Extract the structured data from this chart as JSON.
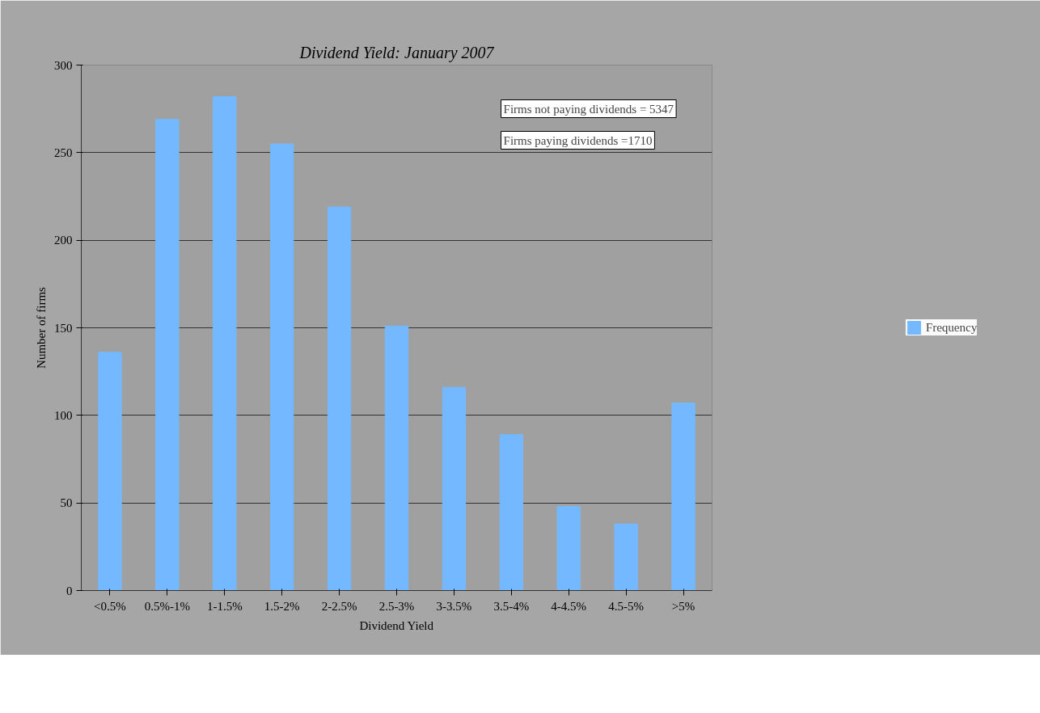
{
  "chart_data": {
    "type": "bar",
    "title": "Dividend Yield: January 2007",
    "xlabel": "Dividend Yield",
    "ylabel": "Number of firms",
    "categories": [
      "<0.5%",
      "0.5%-1%",
      "1-1.5%",
      "1.5-2%",
      "2-2.5%",
      "2.5-3%",
      "3-3.5%",
      "3.5-4%",
      "4-4.5%",
      "4.5-5%",
      ">5%"
    ],
    "series": [
      {
        "name": "Frequency",
        "color": "#74b9ff",
        "values": [
          136,
          269,
          282,
          255,
          219,
          151,
          116,
          89,
          48,
          38,
          107
        ]
      }
    ],
    "ylim": [
      0,
      300
    ],
    "yticks": [
      0,
      50,
      100,
      150,
      200,
      250,
      300
    ],
    "grid": "y",
    "legend": "right",
    "annotations": [
      "Firms not paying dividends = 5347",
      "Firms paying dividends =1710"
    ]
  }
}
